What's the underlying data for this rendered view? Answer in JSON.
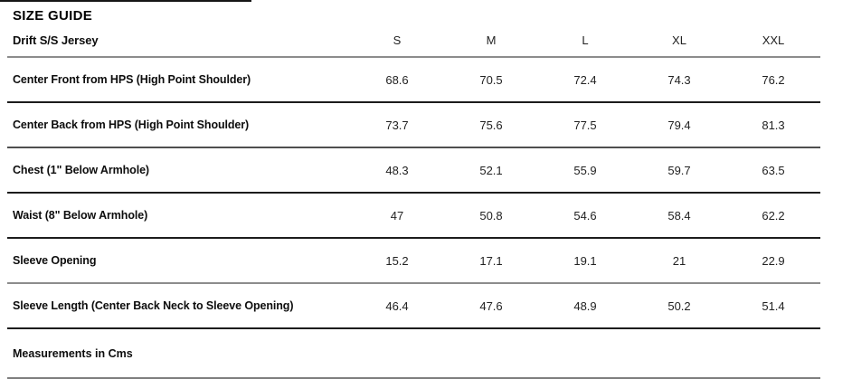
{
  "page": {
    "title": "SIZE GUIDE",
    "product_name": "Drift S/S Jersey",
    "footnote": "Measurements in Cms"
  },
  "table": {
    "columns": [
      "S",
      "M",
      "L",
      "XL",
      "XXL"
    ],
    "rows": [
      {
        "label": "Center Front from HPS (High Point Shoulder)",
        "values": [
          "68.6",
          "70.5",
          "72.4",
          "74.3",
          "76.2"
        ]
      },
      {
        "label": "Center Back from HPS (High Point Shoulder)",
        "values": [
          "73.7",
          "75.6",
          "77.5",
          "79.4",
          "81.3"
        ]
      },
      {
        "label": "Chest (1\" Below Armhole)",
        "values": [
          "48.3",
          "52.1",
          "55.9",
          "59.7",
          "63.5"
        ]
      },
      {
        "label": "Waist (8\" Below Armhole)",
        "values": [
          "47",
          "50.8",
          "54.6",
          "58.4",
          "62.2"
        ]
      },
      {
        "label": "Sleeve Opening",
        "values": [
          "15.2",
          "17.1",
          "19.1",
          "21",
          "22.9"
        ]
      },
      {
        "label": "Sleeve Length (Center Back Neck to Sleeve Opening)",
        "values": [
          "46.4",
          "47.6",
          "48.9",
          "50.2",
          "51.4"
        ]
      }
    ],
    "units_note": "Cms"
  },
  "colors": {
    "text": "#0d0d0d",
    "separator_dark": "#1c1c1c",
    "separator_gray": "#8c8c8c"
  }
}
